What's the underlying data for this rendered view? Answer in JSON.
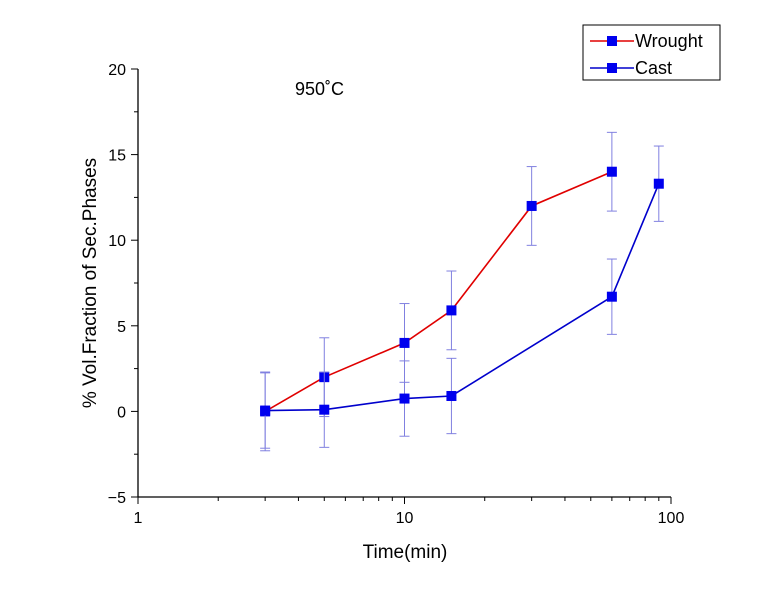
{
  "chart_data": {
    "type": "line",
    "title": "",
    "annotation": "950˚C",
    "xlabel": "Time(min)",
    "ylabel": "% Vol.Fraction of Sec.Phases",
    "xscale": "log",
    "xlim": [
      1,
      100
    ],
    "ylim": [
      -5,
      20
    ],
    "xticks": [
      1,
      10,
      100
    ],
    "xtick_labels": [
      "1",
      "10",
      "100"
    ],
    "yticks": [
      -5,
      0,
      5,
      10,
      15,
      20
    ],
    "ytick_labels": [
      "−5",
      "0",
      "5",
      "10",
      "15",
      "20"
    ],
    "grid": false,
    "legend_position": "top-right",
    "series": [
      {
        "name": "Wrought",
        "line_color": "#e00000",
        "marker_color": "#0000ee",
        "x": [
          3,
          5,
          10,
          15,
          30,
          60
        ],
        "y": [
          0,
          2,
          4,
          5.9,
          12,
          14
        ],
        "err": [
          2.3,
          2.3,
          2.3,
          2.3,
          2.3,
          2.3
        ]
      },
      {
        "name": "Cast",
        "line_color": "#0000cc",
        "marker_color": "#0000ee",
        "x": [
          3,
          5,
          10,
          15,
          60,
          90
        ],
        "y": [
          0.05,
          0.1,
          0.75,
          0.9,
          6.7,
          13.3
        ],
        "err": [
          2.2,
          2.2,
          2.2,
          2.2,
          2.2,
          2.2
        ]
      }
    ]
  }
}
